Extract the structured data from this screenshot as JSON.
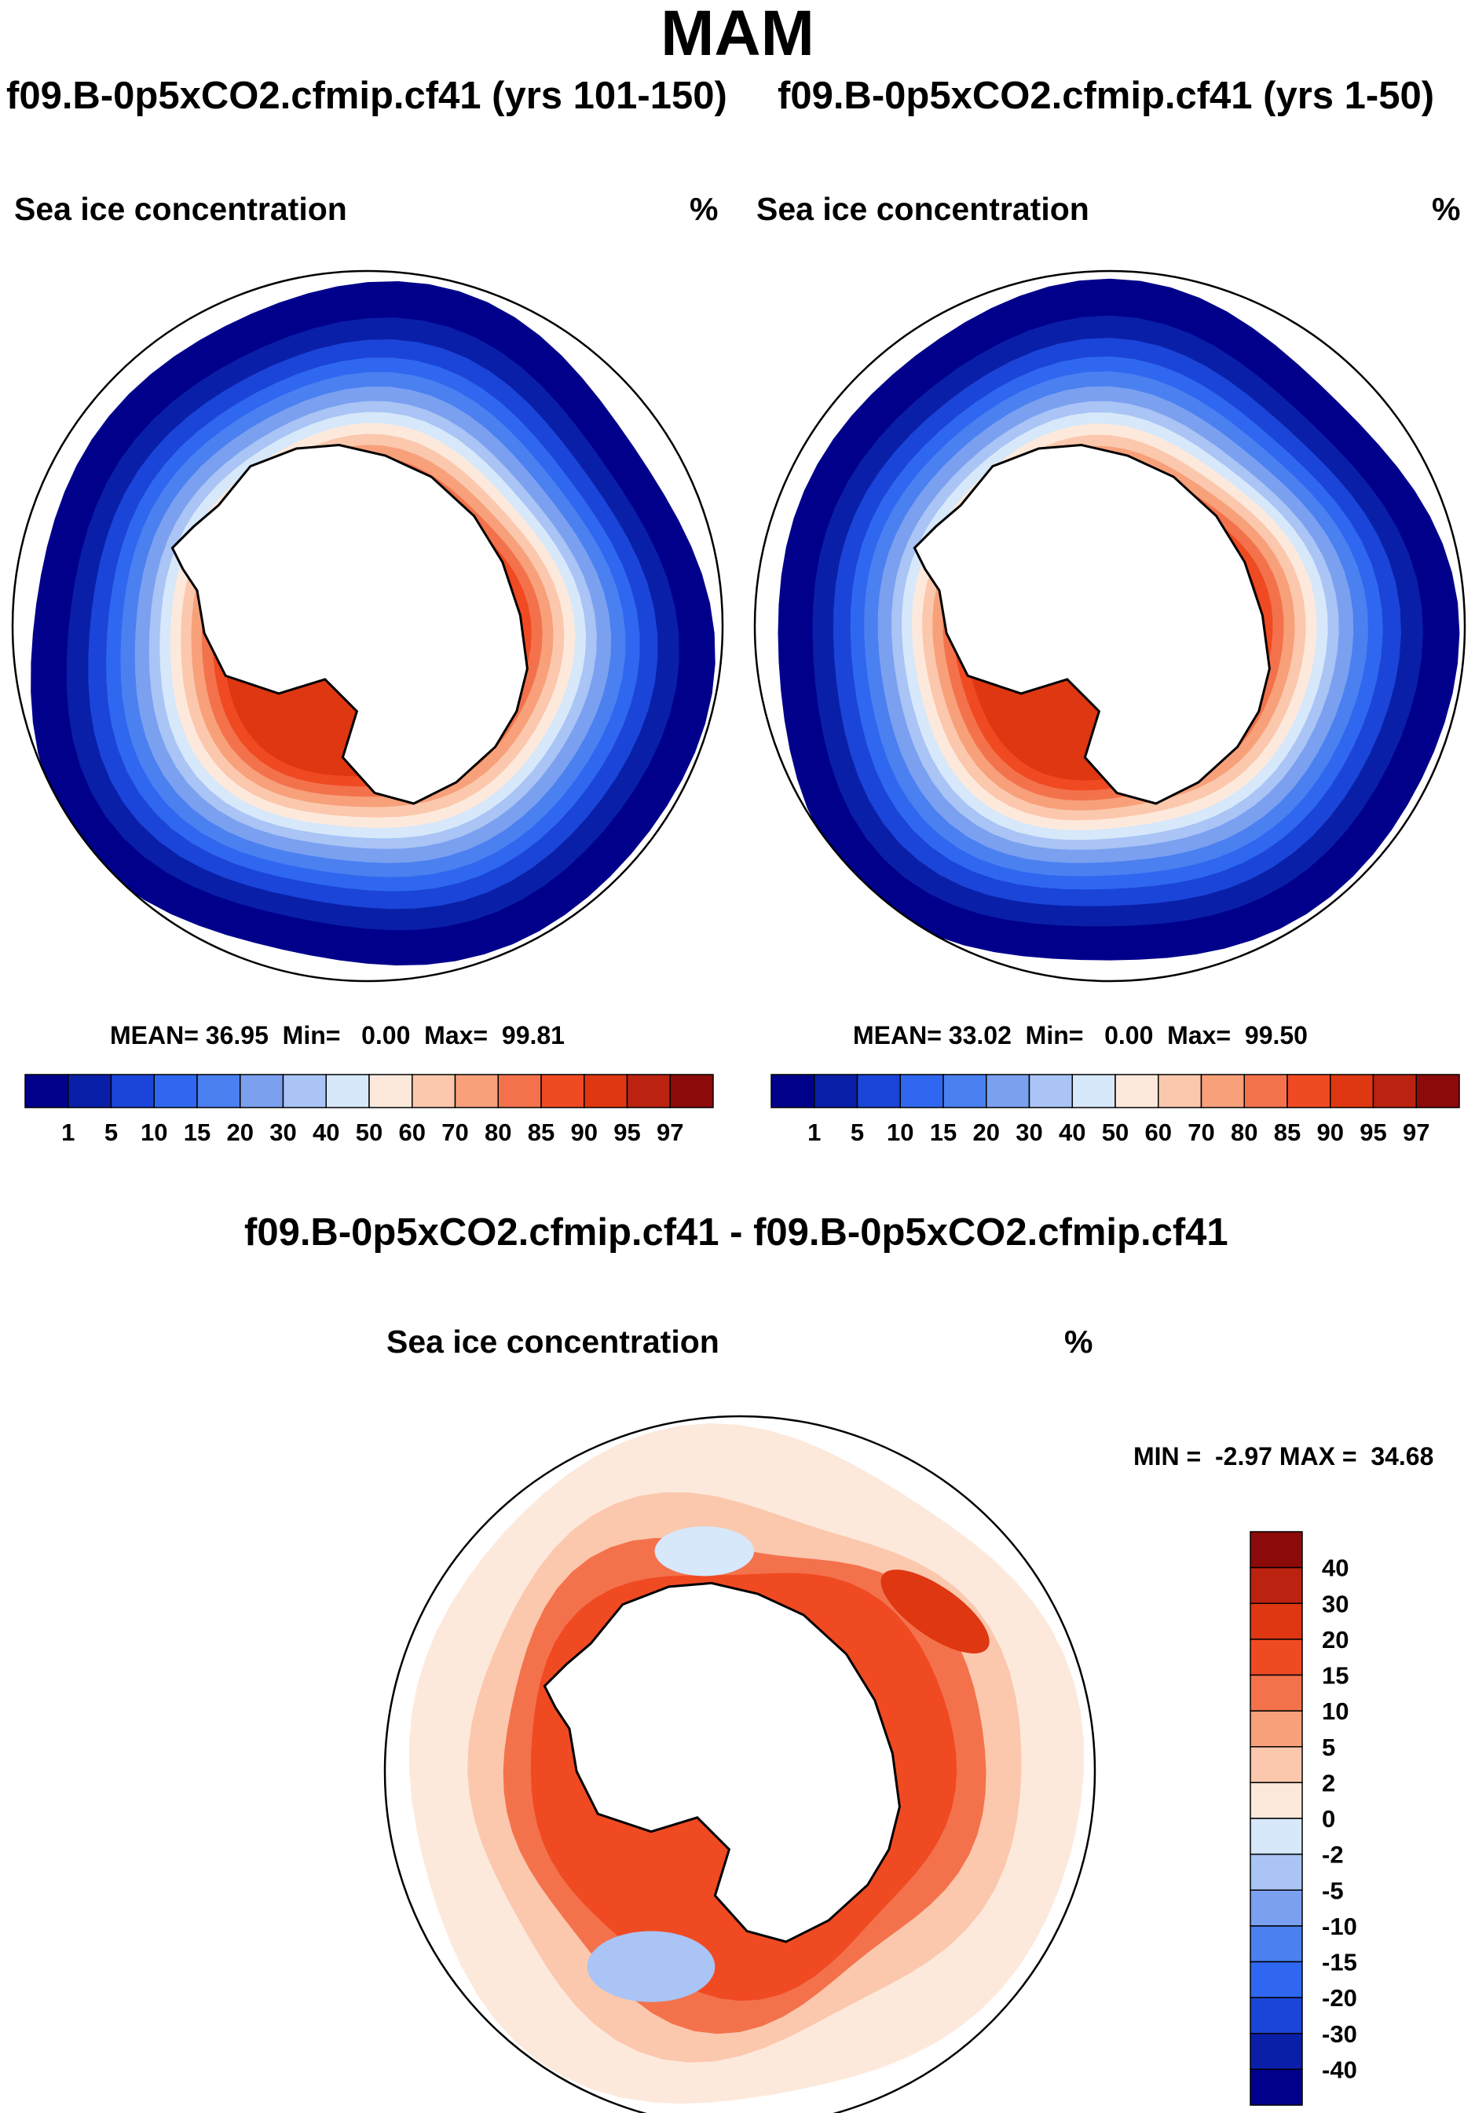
{
  "title": "MAM",
  "panels": [
    {
      "experiment": "f09.B-0p5xCO2.cfmip.cf41 (yrs 101-150)",
      "variable": "Sea ice concentration",
      "units": "%",
      "mean": "36.95",
      "min": "0.00",
      "max": "99.81",
      "mean_label": "MEAN=",
      "min_label": "Min=",
      "max_label": "Max="
    },
    {
      "experiment": "f09.B-0p5xCO2.cfmip.cf41 (yrs 1-50)",
      "variable": "Sea ice concentration",
      "units": "%",
      "mean": "33.02",
      "min": "0.00",
      "max": "99.50",
      "mean_label": "MEAN=",
      "min_label": "Min=",
      "max_label": "Max="
    }
  ],
  "diff_panel": {
    "experiment": "f09.B-0p5xCO2.cfmip.cf41 - f09.B-0p5xCO2.cfmip.cf41",
    "variable": "Sea ice concentration",
    "units": "%",
    "min_label": "MIN =",
    "min": "-2.97",
    "max_label": "MAX =",
    "max": "34.68"
  },
  "colors": {
    "abs_scale": [
      "#00008b",
      "#0a1fa8",
      "#1a45d8",
      "#2f67f0",
      "#4a80f0",
      "#7ba0f0",
      "#a9c4f5",
      "#d6e8fa",
      "#fde9dc",
      "#fbc8ad",
      "#f7a07a",
      "#f3724c",
      "#f04a22",
      "#de3712",
      "#bc2210",
      "#8c0a0a"
    ],
    "diff_scale": [
      "#8c0a0a",
      "#bc2210",
      "#de3712",
      "#f04a22",
      "#f3724c",
      "#f7a07a",
      "#fbc8ad",
      "#fde9dc",
      "#d6e8fa",
      "#a9c4f5",
      "#7ba0f0",
      "#4a80f0",
      "#2f67f0",
      "#1a45d8",
      "#0a1fa8",
      "#00008b"
    ]
  },
  "chart_data": [
    {
      "type": "heatmap",
      "title": "f09.B-0p5xCO2.cfmip.cf41 (yrs 101-150)",
      "subtitle": "Sea ice concentration",
      "units": "%",
      "projection": "south-polar-stereographic",
      "colorbar_levels": [
        "1",
        "5",
        "10",
        "15",
        "20",
        "30",
        "40",
        "50",
        "60",
        "70",
        "80",
        "85",
        "90",
        "95",
        "97"
      ],
      "stats": {
        "mean": 36.95,
        "min": 0.0,
        "max": 99.81
      }
    },
    {
      "type": "heatmap",
      "title": "f09.B-0p5xCO2.cfmip.cf41 (yrs 1-50)",
      "subtitle": "Sea ice concentration",
      "units": "%",
      "projection": "south-polar-stereographic",
      "colorbar_levels": [
        "1",
        "5",
        "10",
        "15",
        "20",
        "30",
        "40",
        "50",
        "60",
        "70",
        "80",
        "85",
        "90",
        "95",
        "97"
      ],
      "stats": {
        "mean": 33.02,
        "min": 0.0,
        "max": 99.5
      }
    },
    {
      "type": "heatmap",
      "title": "f09.B-0p5xCO2.cfmip.cf41 - f09.B-0p5xCO2.cfmip.cf41",
      "subtitle": "Sea ice concentration",
      "units": "%",
      "projection": "south-polar-stereographic",
      "colorbar_levels": [
        "40",
        "30",
        "20",
        "15",
        "10",
        "5",
        "2",
        "0",
        "-2",
        "-5",
        "-10",
        "-15",
        "-20",
        "-30",
        "-40"
      ],
      "stats": {
        "min": -2.97,
        "max": 34.68
      }
    }
  ]
}
